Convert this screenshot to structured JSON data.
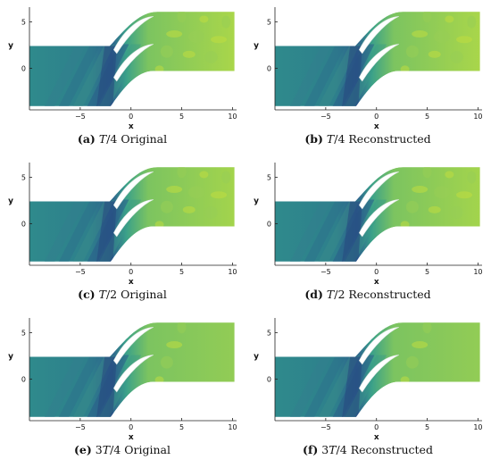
{
  "figure": {
    "panels": [
      {
        "tag": "(a)",
        "prefix": "",
        "symbol": "T",
        "suffix": "/4",
        "label": "Original",
        "field": {
          "inlet_color": "#2f8a8c",
          "outlet_color": "#a9d64a",
          "band_variation": "high"
        }
      },
      {
        "tag": "(b)",
        "prefix": "",
        "symbol": "T",
        "suffix": "/4",
        "label": "Reconstructed",
        "field": {
          "inlet_color": "#2f8a8c",
          "outlet_color": "#a9d64a",
          "band_variation": "high"
        }
      },
      {
        "tag": "(c)",
        "prefix": "",
        "symbol": "T",
        "suffix": "/2",
        "label": "Original",
        "field": {
          "inlet_color": "#2f8a8c",
          "outlet_color": "#a3d44c",
          "band_variation": "high"
        }
      },
      {
        "tag": "(d)",
        "prefix": "",
        "symbol": "T",
        "suffix": "/2",
        "label": "Reconstructed",
        "field": {
          "inlet_color": "#2f8a8c",
          "outlet_color": "#a3d44c",
          "band_variation": "high"
        }
      },
      {
        "tag": "(e)",
        "prefix": "3",
        "symbol": "T",
        "suffix": "/4",
        "label": "Original",
        "field": {
          "inlet_color": "#2f8a8c",
          "outlet_color": "#92cc55",
          "band_variation": "low"
        }
      },
      {
        "tag": "(f)",
        "prefix": "3",
        "symbol": "T",
        "suffix": "/4",
        "label": "Reconstructed",
        "field": {
          "inlet_color": "#2f8a8c",
          "outlet_color": "#92cc55",
          "band_variation": "low"
        }
      }
    ],
    "axes": {
      "xlabel": "x",
      "ylabel": "y",
      "x_ticks": [
        "−5",
        "0",
        "5",
        "10"
      ],
      "y_ticks": [
        "5",
        "0"
      ]
    },
    "colors": {
      "low": "#2b6a8a",
      "mid": "#3a9e8a",
      "high": "#b2d845",
      "blade": "#ffffff",
      "axis": "#222222"
    }
  }
}
